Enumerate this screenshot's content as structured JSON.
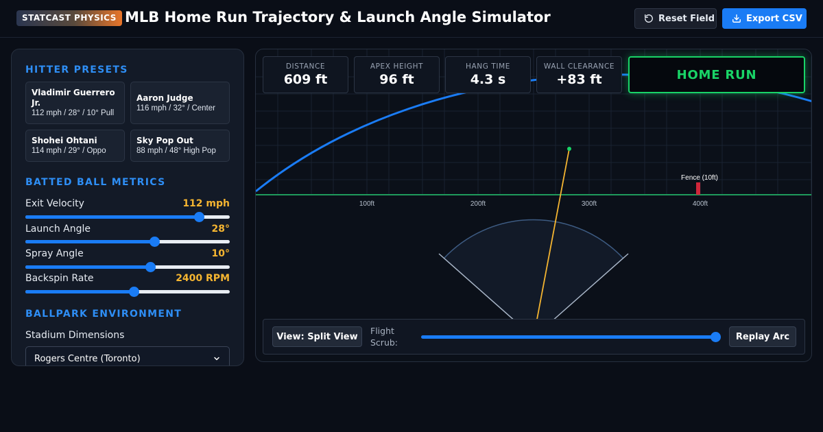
{
  "header": {
    "badge": "STATCAST PHYSICS",
    "title": "MLB Home Run Trajectory & Launch Angle Simulator",
    "reset_label": "Reset Field",
    "export_label": "Export CSV"
  },
  "sidebar": {
    "presets_title": "HITTER PRESETS",
    "presets": [
      {
        "name": "Vladimir Guerrero Jr.",
        "stats": "112 mph / 28° / 10° Pull"
      },
      {
        "name": "Aaron Judge",
        "stats": "116 mph / 32° / Center"
      },
      {
        "name": "Shohei Ohtani",
        "stats": "114 mph / 29° / Oppo"
      },
      {
        "name": "Sky Pop Out",
        "stats": "88 mph / 48° High Pop"
      }
    ],
    "metrics_title": "BATTED BALL METRICS",
    "metrics": [
      {
        "label": "Exit Velocity",
        "value": "112 mph",
        "fraction": 0.85
      },
      {
        "label": "Launch Angle",
        "value": "28°",
        "fraction": 0.63
      },
      {
        "label": "Spray Angle",
        "value": "10°",
        "fraction": 0.61
      },
      {
        "label": "Backspin Rate",
        "value": "2400 RPM",
        "fraction": 0.53
      }
    ],
    "environment_title": "BALLPARK ENVIRONMENT",
    "stadium_label": "Stadium Dimensions",
    "stadium_selected": "Rogers Centre (Toronto)"
  },
  "field": {
    "stats": [
      {
        "label": "DISTANCE",
        "value": "609 ft"
      },
      {
        "label": "APEX HEIGHT",
        "value": "96 ft"
      },
      {
        "label": "HANG TIME",
        "value": "4.3 s"
      },
      {
        "label": "WALL CLEARANCE",
        "value": "+83 ft"
      }
    ],
    "verdict": "HOME RUN",
    "distance_ticks": [
      "100ft",
      "200ft",
      "300ft",
      "400ft"
    ],
    "fence_label": "Fence (10ft)",
    "view_label": "View: Split View",
    "scrub_label": "Flight Scrub:",
    "scrub_fraction": 1.0,
    "replay_label": "Replay Arc"
  },
  "colors": {
    "accent": "#1a7cf5",
    "metric_value": "#f5b531",
    "home_run": "#19d467",
    "trajectory": "#1a7cf5",
    "spray_line": "#f5b531",
    "fence": "#d0263a"
  }
}
